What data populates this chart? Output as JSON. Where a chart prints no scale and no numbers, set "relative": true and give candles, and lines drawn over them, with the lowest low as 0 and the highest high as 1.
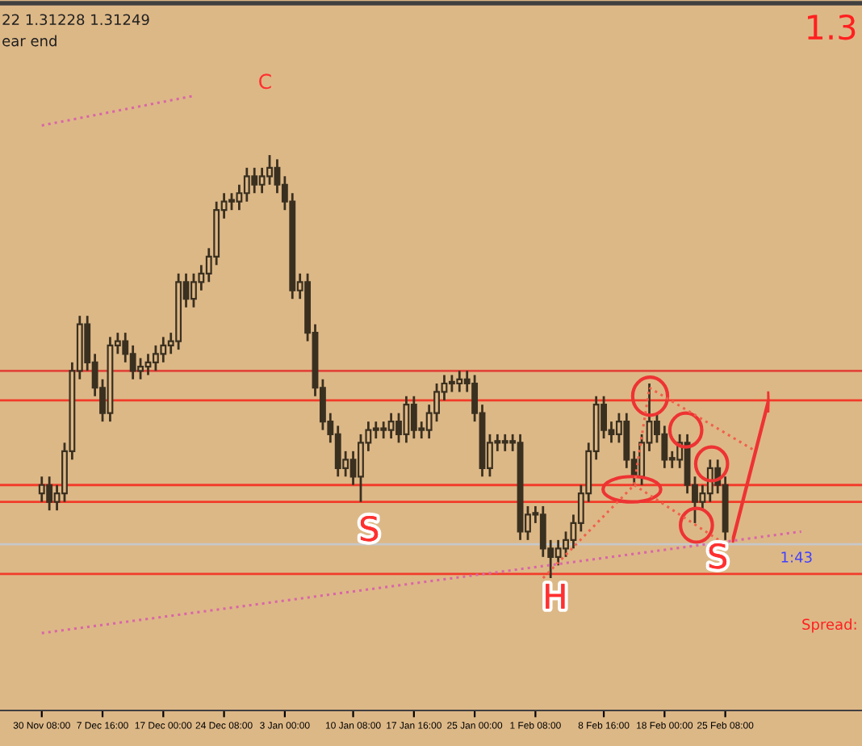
{
  "chart_data": {
    "type": "candlestick",
    "relative": true,
    "color": "#3a3020",
    "tick_labels": "x",
    "categories": [
      "30 Nov 08:00",
      null,
      null,
      null,
      null,
      null,
      null,
      null,
      "7 Dec 16:00",
      null,
      null,
      null,
      null,
      null,
      null,
      null,
      "17 Dec 00:00",
      null,
      null,
      null,
      null,
      null,
      null,
      null,
      "24 Dec 08:00",
      null,
      null,
      null,
      null,
      null,
      null,
      null,
      "3 Jan 00:00",
      null,
      null,
      null,
      null,
      null,
      null,
      null,
      null,
      "10 Jan 08:00",
      null,
      null,
      null,
      null,
      null,
      null,
      null,
      "17 Jan 16:00",
      null,
      null,
      null,
      null,
      null,
      null,
      null,
      "25 Jan 00:00",
      null,
      null,
      null,
      null,
      null,
      null,
      null,
      "1 Feb 08:00",
      null,
      null,
      null,
      null,
      null,
      null,
      null,
      null,
      "8 Feb 16:00",
      null,
      null,
      null,
      null,
      null,
      null,
      null,
      "18 Feb 00:00",
      null,
      null,
      null,
      null,
      null,
      null,
      null,
      "25 Feb 08:00",
      null,
      null,
      null,
      null,
      null,
      null,
      null,
      null,
      null,
      null,
      null,
      null,
      null,
      null,
      null,
      null,
      null,
      null
    ],
    "ohlc": [
      [
        0.2,
        0.24,
        0.18,
        0.22
      ],
      [
        0.22,
        0.24,
        0.16,
        0.18
      ],
      [
        0.18,
        0.22,
        0.16,
        0.2
      ],
      [
        0.2,
        0.32,
        0.18,
        0.3
      ],
      [
        0.3,
        0.51,
        0.28,
        0.49
      ],
      [
        0.49,
        0.62,
        0.47,
        0.6
      ],
      [
        0.6,
        0.62,
        0.49,
        0.51
      ],
      [
        0.51,
        0.53,
        0.43,
        0.45
      ],
      [
        0.45,
        0.47,
        0.37,
        0.39
      ],
      [
        0.39,
        0.57,
        0.37,
        0.55
      ],
      [
        0.55,
        0.58,
        0.53,
        0.56
      ],
      [
        0.56,
        0.58,
        0.51,
        0.53
      ],
      [
        0.53,
        0.55,
        0.47,
        0.49
      ],
      [
        0.49,
        0.52,
        0.47,
        0.5
      ],
      [
        0.5,
        0.53,
        0.48,
        0.51
      ],
      [
        0.51,
        0.55,
        0.49,
        0.53
      ],
      [
        0.53,
        0.57,
        0.51,
        0.55
      ],
      [
        0.55,
        0.58,
        0.53,
        0.56
      ],
      [
        0.56,
        0.72,
        0.54,
        0.7
      ],
      [
        0.7,
        0.72,
        0.64,
        0.66
      ],
      [
        0.66,
        0.72,
        0.64,
        0.7
      ],
      [
        0.7,
        0.74,
        0.68,
        0.72
      ],
      [
        0.72,
        0.78,
        0.7,
        0.76
      ],
      [
        0.76,
        0.89,
        0.74,
        0.87
      ],
      [
        0.87,
        0.91,
        0.85,
        0.89
      ],
      [
        0.89,
        0.91,
        0.87,
        0.89
      ],
      [
        0.89,
        0.93,
        0.87,
        0.91
      ],
      [
        0.91,
        0.97,
        0.89,
        0.95
      ],
      [
        0.95,
        0.97,
        0.91,
        0.93
      ],
      [
        0.93,
        0.97,
        0.91,
        0.95
      ],
      [
        0.95,
        1.0,
        0.93,
        0.97
      ],
      [
        0.97,
        0.99,
        0.91,
        0.93
      ],
      [
        0.93,
        0.95,
        0.87,
        0.89
      ],
      [
        0.89,
        0.91,
        0.66,
        0.68
      ],
      [
        0.68,
        0.72,
        0.66,
        0.7
      ],
      [
        0.7,
        0.72,
        0.56,
        0.58
      ],
      [
        0.58,
        0.6,
        0.43,
        0.45
      ],
      [
        0.45,
        0.47,
        0.35,
        0.37
      ],
      [
        0.37,
        0.39,
        0.32,
        0.34
      ],
      [
        0.34,
        0.36,
        0.24,
        0.26
      ],
      [
        0.26,
        0.3,
        0.24,
        0.28
      ],
      [
        0.28,
        0.3,
        0.22,
        0.24
      ],
      [
        0.24,
        0.34,
        0.18,
        0.32
      ],
      [
        0.32,
        0.37,
        0.3,
        0.35
      ],
      [
        0.35,
        0.37,
        0.33,
        0.35
      ],
      [
        0.35,
        0.37,
        0.33,
        0.35
      ],
      [
        0.35,
        0.39,
        0.33,
        0.37
      ],
      [
        0.37,
        0.39,
        0.32,
        0.34
      ],
      [
        0.34,
        0.43,
        0.32,
        0.41
      ],
      [
        0.41,
        0.43,
        0.33,
        0.35
      ],
      [
        0.35,
        0.37,
        0.33,
        0.35
      ],
      [
        0.35,
        0.41,
        0.33,
        0.39
      ],
      [
        0.39,
        0.46,
        0.37,
        0.44
      ],
      [
        0.44,
        0.48,
        0.42,
        0.46
      ],
      [
        0.46,
        0.48,
        0.44,
        0.46
      ],
      [
        0.46,
        0.49,
        0.44,
        0.47
      ],
      [
        0.47,
        0.49,
        0.44,
        0.46
      ],
      [
        0.46,
        0.48,
        0.37,
        0.39
      ],
      [
        0.39,
        0.41,
        0.24,
        0.26
      ],
      [
        0.26,
        0.34,
        0.24,
        0.32
      ],
      [
        0.32,
        0.34,
        0.3,
        0.32
      ],
      [
        0.32,
        0.34,
        0.3,
        0.32
      ],
      [
        0.32,
        0.34,
        0.3,
        0.32
      ],
      [
        0.32,
        0.34,
        0.09,
        0.11
      ],
      [
        0.11,
        0.17,
        0.09,
        0.15
      ],
      [
        0.15,
        0.17,
        0.13,
        0.15
      ],
      [
        0.15,
        0.17,
        0.05,
        0.07
      ],
      [
        0.07,
        0.09,
        0.0,
        0.05
      ],
      [
        0.05,
        0.09,
        0.03,
        0.07
      ],
      [
        0.07,
        0.11,
        0.05,
        0.09
      ],
      [
        0.09,
        0.15,
        0.07,
        0.13
      ],
      [
        0.13,
        0.22,
        0.11,
        0.2
      ],
      [
        0.2,
        0.32,
        0.18,
        0.3
      ],
      [
        0.3,
        0.43,
        0.28,
        0.41
      ],
      [
        0.41,
        0.43,
        0.33,
        0.35
      ],
      [
        0.35,
        0.37,
        0.32,
        0.34
      ],
      [
        0.34,
        0.39,
        0.32,
        0.37
      ],
      [
        0.37,
        0.39,
        0.26,
        0.28
      ],
      [
        0.28,
        0.3,
        0.22,
        0.24
      ],
      [
        0.24,
        0.34,
        0.22,
        0.32
      ],
      [
        0.32,
        0.46,
        0.3,
        0.37
      ],
      [
        0.37,
        0.39,
        0.32,
        0.34
      ],
      [
        0.34,
        0.36,
        0.26,
        0.28
      ],
      [
        0.28,
        0.3,
        0.26,
        0.28
      ],
      [
        0.28,
        0.34,
        0.26,
        0.32
      ],
      [
        0.32,
        0.34,
        0.2,
        0.22
      ],
      [
        0.22,
        0.24,
        0.13,
        0.18
      ],
      [
        0.18,
        0.22,
        0.16,
        0.2
      ],
      [
        0.2,
        0.28,
        0.18,
        0.26
      ],
      [
        0.26,
        0.28,
        0.2,
        0.22
      ],
      [
        0.22,
        0.24,
        0.09,
        0.11
      ],
      null,
      null,
      null,
      null,
      null,
      null,
      null,
      null,
      null,
      null,
      null,
      null,
      null,
      null,
      null,
      null,
      null,
      null
    ],
    "ref_lines": [
      {
        "axis": "y",
        "value": 0.49,
        "color": "#e0463a"
      },
      {
        "axis": "y",
        "value": 0.42,
        "color": "#f23c2a"
      },
      {
        "axis": "y",
        "value": 0.22,
        "color": "#f23c2a"
      },
      {
        "axis": "y",
        "value": 0.18,
        "color": "#f23c2a"
      },
      {
        "axis": "y",
        "value": 0.08,
        "color": "#c8c8c8"
      },
      {
        "axis": "y",
        "value": 0.01,
        "color": "#f23c2a"
      }
    ],
    "series": [
      {
        "type": "line",
        "color": "#d966a8",
        "line_style": "dotted",
        "values": [
          -0.13,
          null,
          null,
          null,
          null,
          null,
          null,
          null,
          null,
          null,
          null,
          null,
          null,
          null,
          null,
          null,
          null,
          null,
          null,
          null,
          null,
          null,
          null,
          null,
          null,
          null,
          null,
          null,
          null,
          null,
          null,
          null,
          null,
          null,
          null,
          null,
          null,
          null,
          null,
          null,
          null,
          null,
          null,
          null,
          null,
          null,
          null,
          null,
          null,
          null,
          null,
          null,
          null,
          null,
          null,
          null,
          null,
          null,
          null,
          null,
          null,
          null,
          null,
          null,
          null,
          null,
          null,
          null,
          null,
          null,
          null,
          null,
          null,
          null,
          null,
          null,
          null,
          null,
          null,
          null,
          null,
          null,
          null,
          null,
          null,
          null,
          null,
          null,
          null,
          null,
          null,
          null,
          null,
          null,
          null,
          null,
          null,
          null,
          null,
          null,
          0.11,
          null,
          null,
          null,
          null,
          null,
          null,
          null,
          null
        ]
      },
      {
        "type": "line",
        "color": "#f0604a",
        "line_style": "dotted",
        "values": [
          null,
          null,
          null,
          null,
          null,
          null,
          null,
          null,
          null,
          null,
          null,
          null,
          null,
          null,
          null,
          null,
          null,
          null,
          null,
          null,
          null,
          null,
          null,
          null,
          null,
          null,
          null,
          null,
          null,
          null,
          null,
          null,
          null,
          null,
          null,
          null,
          null,
          null,
          null,
          null,
          null,
          null,
          null,
          null,
          null,
          null,
          null,
          null,
          null,
          null,
          null,
          null,
          null,
          null,
          null,
          null,
          null,
          null,
          null,
          null,
          null,
          null,
          null,
          null,
          null,
          null,
          0.0,
          null,
          null,
          null,
          null,
          null,
          null,
          null,
          null,
          null,
          null,
          null,
          0.22,
          null,
          0.45,
          null,
          null,
          null,
          null,
          null,
          null,
          null,
          null,
          null,
          null,
          null,
          null,
          null,
          null,
          null,
          null,
          null,
          null,
          null,
          null,
          null,
          null,
          null,
          null,
          null,
          null,
          null,
          null
        ]
      },
      {
        "type": "line",
        "color": "#f0604a",
        "line_style": "dotted",
        "values": [
          null,
          null,
          null,
          null,
          null,
          null,
          null,
          null,
          null,
          null,
          null,
          null,
          null,
          null,
          null,
          null,
          null,
          null,
          null,
          null,
          null,
          null,
          null,
          null,
          null,
          null,
          null,
          null,
          null,
          null,
          null,
          null,
          null,
          null,
          null,
          null,
          null,
          null,
          null,
          null,
          null,
          null,
          null,
          null,
          null,
          null,
          null,
          null,
          null,
          null,
          null,
          null,
          null,
          null,
          null,
          null,
          null,
          null,
          null,
          null,
          null,
          null,
          null,
          null,
          null,
          null,
          null,
          null,
          null,
          null,
          null,
          null,
          null,
          null,
          null,
          null,
          null,
          null,
          null,
          null,
          0.45,
          null,
          null,
          null,
          null,
          null,
          null,
          null,
          null,
          null,
          null,
          null,
          null,
          null,
          0.3,
          null,
          null,
          null,
          null,
          null,
          null,
          null,
          null,
          null,
          null,
          null,
          null,
          null,
          null
        ]
      },
      {
        "type": "line",
        "color": "#f0604a",
        "line_style": "dotted",
        "values": [
          null,
          null,
          null,
          null,
          null,
          null,
          null,
          null,
          null,
          null,
          null,
          null,
          null,
          null,
          null,
          null,
          null,
          null,
          null,
          null,
          null,
          null,
          null,
          null,
          null,
          null,
          null,
          null,
          null,
          null,
          null,
          null,
          null,
          null,
          null,
          null,
          null,
          null,
          null,
          null,
          null,
          null,
          null,
          null,
          null,
          null,
          null,
          null,
          null,
          null,
          null,
          null,
          null,
          null,
          null,
          null,
          null,
          null,
          null,
          null,
          null,
          null,
          null,
          null,
          null,
          null,
          null,
          null,
          null,
          null,
          null,
          null,
          null,
          null,
          null,
          null,
          null,
          null,
          0.22,
          null,
          null,
          null,
          null,
          null,
          null,
          null,
          null,
          null,
          null,
          null,
          0.08,
          null,
          null,
          null,
          null,
          null,
          null,
          null,
          null,
          null,
          null,
          null,
          null,
          null,
          null,
          null,
          null,
          null,
          null
        ]
      }
    ],
    "annotations": [
      "C",
      "S",
      {
        "text": "H",
        "y": 0.0
      },
      {
        "text": "S",
        "y": 0.09
      },
      "22 1.31228 1.31249",
      "ear end",
      "1.3",
      "Spread:",
      "1:43"
    ]
  }
}
